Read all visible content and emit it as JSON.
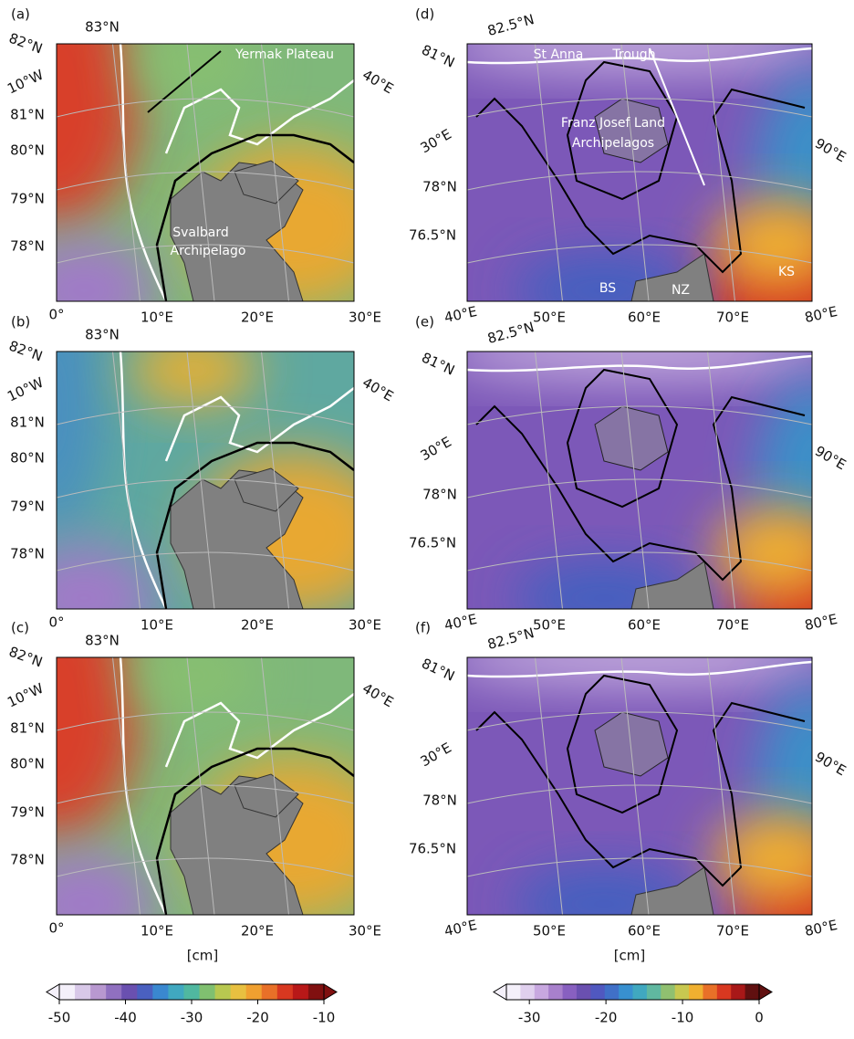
{
  "panels": [
    {
      "label": "(a)",
      "top_labels": [
        "83°N"
      ],
      "left_labels": [
        "82°N",
        "10°W",
        "81°N",
        "80°N",
        "79°N",
        "78°N"
      ],
      "right_labels": [
        "40°E"
      ],
      "bottom_labels": [
        "0°",
        "10°E",
        "20°E",
        "30°E"
      ],
      "annotations": [
        "Yermak Plateau",
        "Svalbard",
        "Archipelago"
      ]
    },
    {
      "label": "(b)",
      "top_labels": [
        "83°N"
      ],
      "left_labels": [
        "82°N",
        "10°W",
        "81°N",
        "80°N",
        "79°N",
        "78°N"
      ],
      "right_labels": [
        "40°E"
      ],
      "bottom_labels": [
        "0°",
        "10°E",
        "20°E",
        "30°E"
      ]
    },
    {
      "label": "(c)",
      "top_labels": [
        "83°N"
      ],
      "left_labels": [
        "82°N",
        "10°W",
        "81°N",
        "80°N",
        "79°N",
        "78°N"
      ],
      "right_labels": [
        "40°E"
      ],
      "bottom_labels": [
        "0°",
        "10°E",
        "20°E",
        "30°E"
      ]
    },
    {
      "label": "(d)",
      "top_labels": [
        "82.5°N"
      ],
      "left_labels": [
        "81°N",
        "30°E",
        "78°N",
        "76.5°N"
      ],
      "right_labels": [
        "90°E"
      ],
      "bottom_labels": [
        "40°E",
        "50°E",
        "60°E",
        "70°E",
        "80°E"
      ],
      "annotations": [
        "St Anna",
        "Trough",
        "Franz Josef Land",
        "Archipelagos",
        "BS",
        "NZ",
        "KS"
      ]
    },
    {
      "label": "(e)",
      "top_labels": [
        "82.5°N"
      ],
      "left_labels": [
        "81°N",
        "30°E",
        "78°N",
        "76.5°N"
      ],
      "right_labels": [
        "90°E"
      ],
      "bottom_labels": [
        "40°E",
        "50°E",
        "60°E",
        "70°E",
        "80°E"
      ]
    },
    {
      "label": "(f)",
      "top_labels": [
        "82.5°N"
      ],
      "left_labels": [
        "81°N",
        "30°E",
        "78°N",
        "76.5°N"
      ],
      "right_labels": [
        "90°E"
      ],
      "bottom_labels": [
        "40°E",
        "50°E",
        "60°E",
        "70°E",
        "80°E"
      ]
    }
  ],
  "colorbars": [
    {
      "unit": "[cm]",
      "lim": [
        -50,
        -10
      ],
      "ticks": [
        -50,
        -40,
        -30,
        -20,
        -10
      ]
    },
    {
      "unit": "[cm]",
      "lim": [
        -33,
        0
      ],
      "ticks": [
        -30,
        -20,
        -10,
        0
      ]
    }
  ]
}
